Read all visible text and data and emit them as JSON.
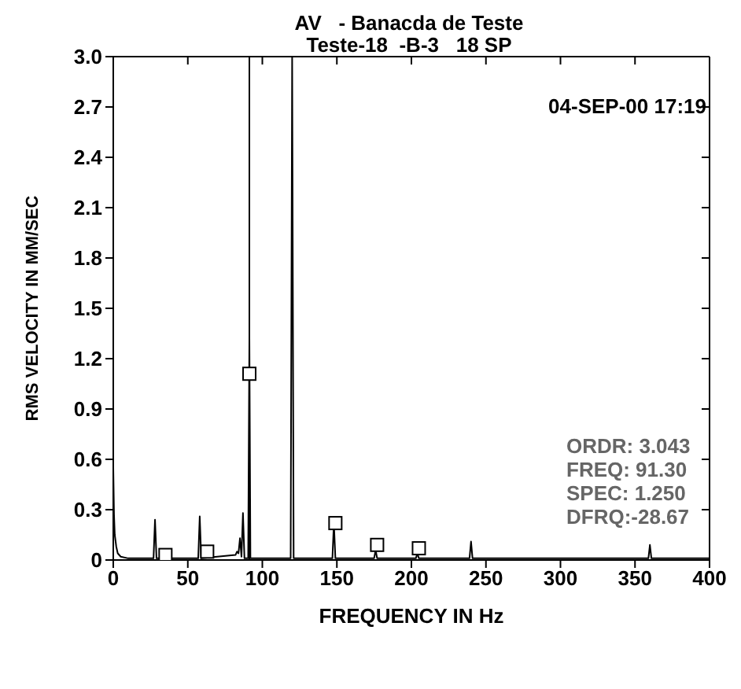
{
  "chart_data": {
    "type": "line",
    "title": "AV   - Banacda de Teste",
    "subtitle": "Teste-18  -B-3   18 SP",
    "xlabel": "FREQUENCY IN Hz",
    "ylabel": "RMS VELOCITY IN MM/SEC",
    "annotations": [
      "04-SEP-00 17:19",
      "ORDR: 3.043",
      "FREQ: 91.30",
      "SPEC: 1.250",
      "DFRQ:-28.67"
    ],
    "series": [
      {
        "color": "#000000",
        "marker": "none",
        "x": [
          0,
          0.5,
          1,
          2,
          3,
          5,
          10,
          27,
          28,
          29,
          57,
          58,
          59,
          82,
          83,
          84,
          85,
          86,
          87,
          88,
          90.5,
          91.3,
          92,
          119,
          120,
          121,
          147,
          148,
          149,
          175,
          176,
          177,
          203,
          204,
          205,
          239,
          240,
          241,
          359,
          360,
          361,
          400
        ],
        "values": [
          0.55,
          0.27,
          0.15,
          0.08,
          0.04,
          0.02,
          0.01,
          0.01,
          0.24,
          0.01,
          0.01,
          0.26,
          0.01,
          0.03,
          0.05,
          0.04,
          0.13,
          0.02,
          0.28,
          0.01,
          0.01,
          1.32,
          0.01,
          0.01,
          3.0,
          0.01,
          0.01,
          0.22,
          0.01,
          0.01,
          0.06,
          0.01,
          0.01,
          0.04,
          0.01,
          0.01,
          0.11,
          0.01,
          0.01,
          0.09,
          0.01,
          0.01
        ]
      },
      {
        "type": "scatter",
        "color": "#000000",
        "marker": "square",
        "x": [
          35,
          63,
          91.3,
          149,
          177,
          205
        ],
        "values": [
          0.03,
          0.05,
          1.11,
          0.22,
          0.09,
          0.07
        ]
      }
    ],
    "ref_lines": [
      {
        "axis": "x",
        "value": 91.3,
        "label": null,
        "color": "#000000"
      }
    ],
    "xlim": [
      0,
      400
    ],
    "xticks": [
      0,
      50,
      100,
      150,
      200,
      250,
      300,
      350,
      400
    ],
    "ylim": [
      0,
      3
    ],
    "yticks": [
      0,
      {
        "value": 0.3,
        "label": "0.3"
      },
      {
        "value": 0.6,
        "label": "0.6"
      },
      {
        "value": 0.9,
        "label": "0.9"
      },
      {
        "value": 1.2,
        "label": "1.2"
      },
      {
        "value": 1.5,
        "label": "1.5"
      },
      {
        "value": 1.8,
        "label": "1.8"
      },
      {
        "value": 2.1,
        "label": "2.1"
      },
      {
        "value": 2.4,
        "label": "2.4"
      },
      {
        "value": 2.7,
        "label": "2.7"
      },
      {
        "value": 3,
        "label": "3.0"
      }
    ]
  }
}
